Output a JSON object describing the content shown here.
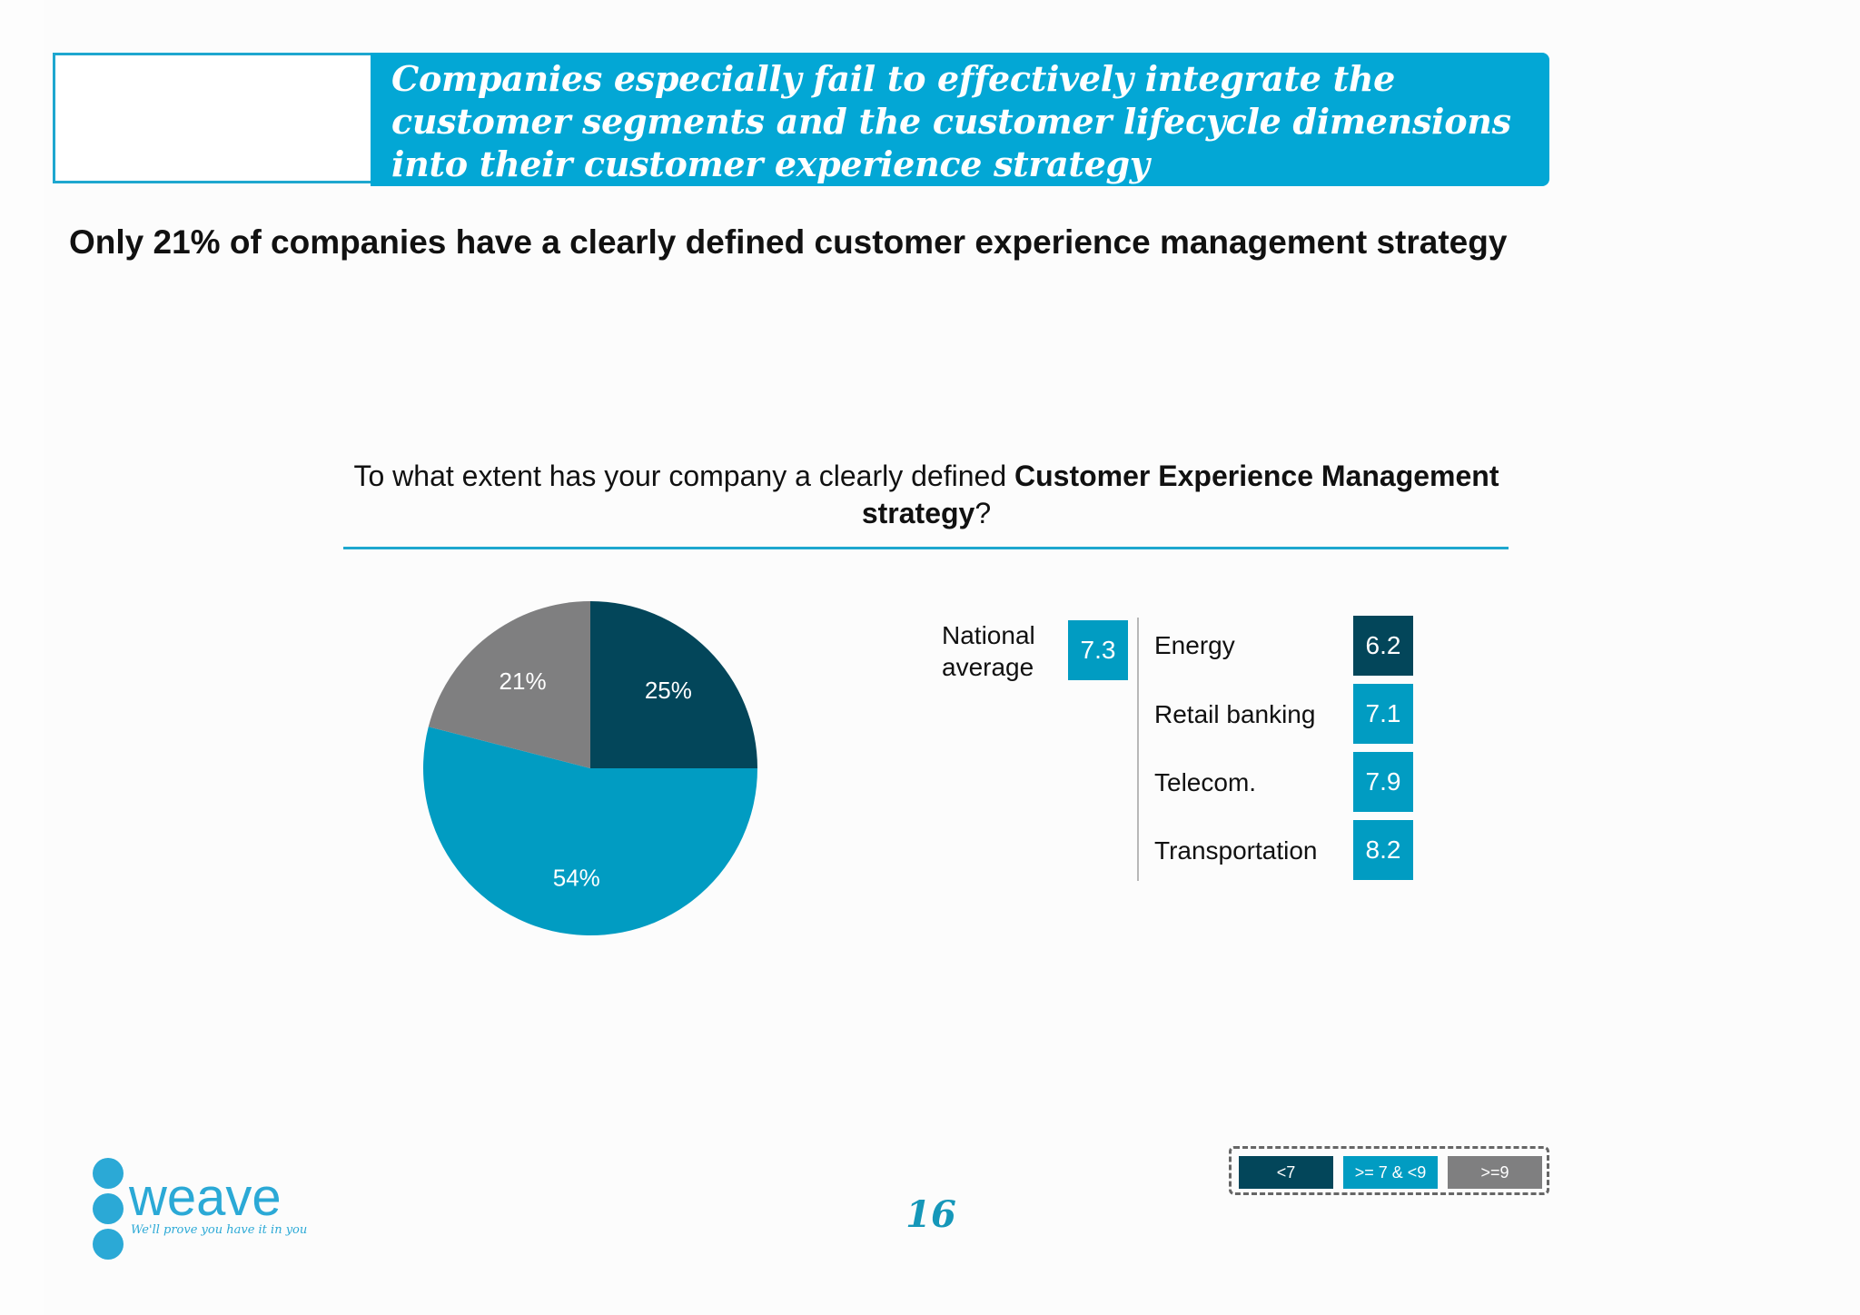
{
  "header": {
    "banner_text": "Companies especially fail to effectively integrate the customer segments and the customer lifecycle dimensions into their customer experience strategy"
  },
  "headline": "Only 21% of companies have a clearly defined customer experience management strategy",
  "question": {
    "part1": "To what extent has your company a clearly defined ",
    "bold": "Customer Experience Management strategy",
    "part2": "?"
  },
  "chart_data": [
    {
      "type": "pie",
      "slices": [
        {
          "label": "25%",
          "value": 25,
          "color": "#03465a"
        },
        {
          "label": "54%",
          "value": 54,
          "color": "#019cc2"
        },
        {
          "label": "21%",
          "value": 21,
          "color": "#7f7f80"
        }
      ]
    },
    {
      "type": "table",
      "national_average": {
        "label_line1": "National",
        "label_line2": "average",
        "value": "7.3",
        "color": "#019cc2"
      },
      "rows": [
        {
          "sector": "Energy",
          "value": "6.2",
          "color": "#03465a"
        },
        {
          "sector": "Retail banking",
          "value": "7.1",
          "color": "#019cc2"
        },
        {
          "sector": "Telecom.",
          "value": "7.9",
          "color": "#019cc2"
        },
        {
          "sector": "Transportation",
          "value": "8.2",
          "color": "#019cc2"
        }
      ],
      "legend": [
        {
          "label": "<7",
          "color": "#03465a"
        },
        {
          "label": ">= 7 & <9",
          "color": "#019cc2"
        },
        {
          "label": ">=9",
          "color": "#7f7f80"
        }
      ]
    }
  ],
  "page_number": "16",
  "logo": {
    "name": "weave",
    "tagline": "We'll prove you have it in you",
    "color": "#2ba9d6"
  }
}
